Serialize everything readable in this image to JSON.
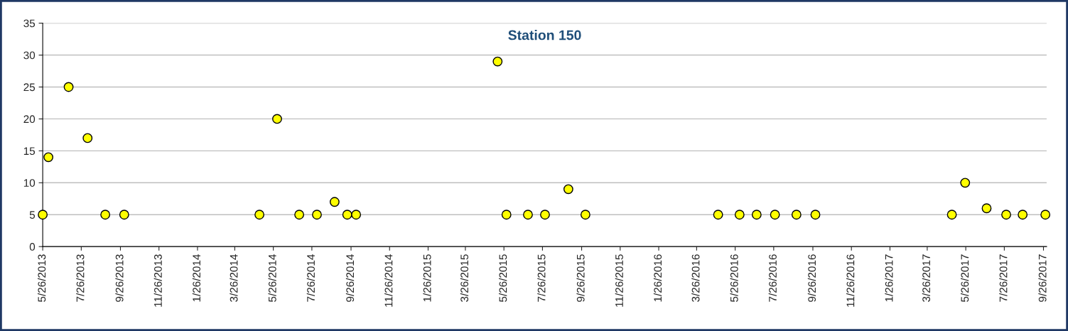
{
  "chart_data": {
    "type": "scatter",
    "title": "Station 150",
    "x": [
      "2013-05-26",
      "2013-06-04",
      "2013-07-06",
      "2013-08-05",
      "2013-09-02",
      "2013-10-02",
      "2014-05-04",
      "2014-06-01",
      "2014-07-06",
      "2014-08-03",
      "2014-08-31",
      "2014-09-20",
      "2014-10-04",
      "2015-05-16",
      "2015-05-30",
      "2015-07-03",
      "2015-07-30",
      "2015-09-05",
      "2015-10-02",
      "2016-04-29",
      "2016-06-02",
      "2016-06-29",
      "2016-07-28",
      "2016-08-31",
      "2016-09-30",
      "2017-05-04",
      "2017-05-25",
      "2017-06-28",
      "2017-07-29",
      "2017-08-24",
      "2017-09-29"
    ],
    "series": [
      {
        "color": "#ffff00",
        "values": [
          5,
          14,
          25,
          17,
          5,
          5,
          5,
          20,
          5,
          5,
          7,
          5,
          5,
          29,
          5,
          5,
          5,
          9,
          5,
          5,
          5,
          5,
          5,
          5,
          5,
          5,
          10,
          6,
          5,
          5,
          5
        ]
      }
    ],
    "marker": "circle",
    "grid": "y",
    "xlim": [
      "2013-05-26",
      "2017-10-01"
    ],
    "ylim": [
      0,
      35
    ],
    "yticks": [
      0,
      5,
      10,
      15,
      20,
      25,
      30,
      35
    ],
    "xticks": [
      {
        "value": "2013-05-26",
        "label": "5/26/2013"
      },
      {
        "value": "2013-07-26",
        "label": "7/26/2013"
      },
      {
        "value": "2013-09-26",
        "label": "9/26/2013"
      },
      {
        "value": "2013-11-26",
        "label": "11/26/2013"
      },
      {
        "value": "2014-01-26",
        "label": "1/26/2014"
      },
      {
        "value": "2014-03-26",
        "label": "3/26/2014"
      },
      {
        "value": "2014-05-26",
        "label": "5/26/2014"
      },
      {
        "value": "2014-07-26",
        "label": "7/26/2014"
      },
      {
        "value": "2014-09-26",
        "label": "9/26/2014"
      },
      {
        "value": "2014-11-26",
        "label": "11/26/2014"
      },
      {
        "value": "2015-01-26",
        "label": "1/26/2015"
      },
      {
        "value": "2015-03-26",
        "label": "3/26/2015"
      },
      {
        "value": "2015-05-26",
        "label": "5/26/2015"
      },
      {
        "value": "2015-07-26",
        "label": "7/26/2015"
      },
      {
        "value": "2015-09-26",
        "label": "9/26/2015"
      },
      {
        "value": "2015-11-26",
        "label": "11/26/2015"
      },
      {
        "value": "2016-01-26",
        "label": "1/26/2016"
      },
      {
        "value": "2016-03-26",
        "label": "3/26/2016"
      },
      {
        "value": "2016-05-26",
        "label": "5/26/2016"
      },
      {
        "value": "2016-07-26",
        "label": "7/26/2016"
      },
      {
        "value": "2016-09-26",
        "label": "9/26/2016"
      },
      {
        "value": "2016-11-26",
        "label": "11/26/2016"
      },
      {
        "value": "2017-01-26",
        "label": "1/26/2017"
      },
      {
        "value": "2017-03-26",
        "label": "3/26/2017"
      },
      {
        "value": "2017-05-26",
        "label": "5/26/2017"
      },
      {
        "value": "2017-07-26",
        "label": "7/26/2017"
      },
      {
        "value": "2017-09-26",
        "label": "9/26/2017"
      }
    ]
  }
}
